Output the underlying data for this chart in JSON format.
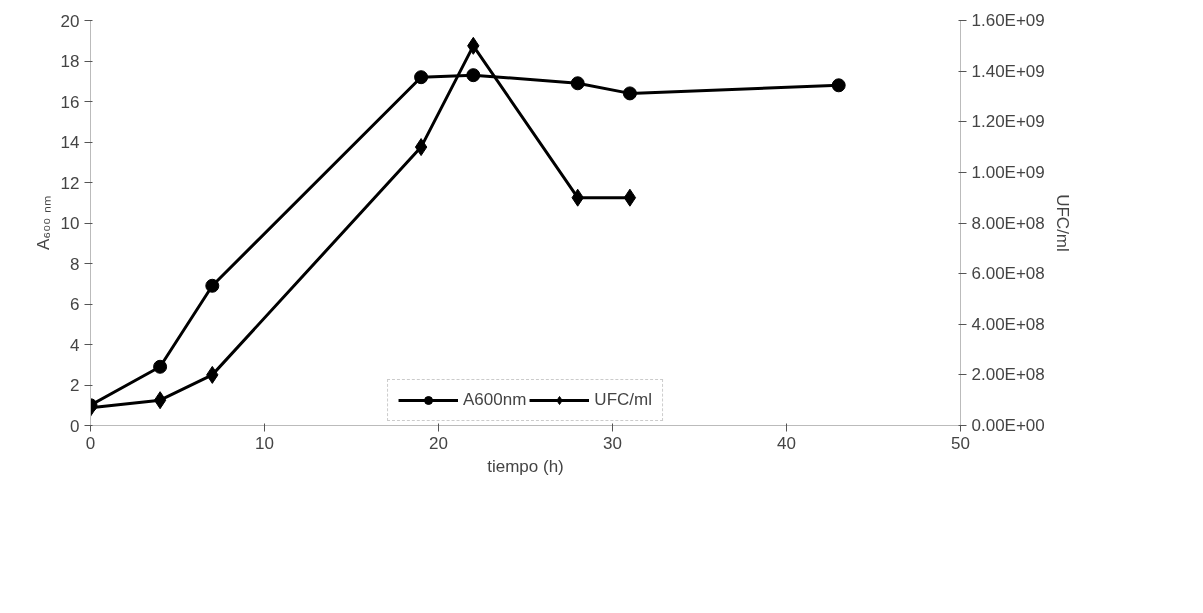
{
  "chart_data": {
    "type": "line",
    "xlabel": "tiempo (h)",
    "ylabel": "A₆₀₀ ₙₘ",
    "y2label": "UFC/ml",
    "xlim": [
      0,
      50
    ],
    "xticks": [
      0,
      10,
      20,
      30,
      40,
      50
    ],
    "ylim": [
      0,
      20
    ],
    "yticks": [
      0,
      2,
      4,
      6,
      8,
      10,
      12,
      14,
      16,
      18,
      20
    ],
    "y2lim": [
      0,
      1600000000
    ],
    "y2ticks": [
      {
        "value": 0,
        "label": "0.00E+00"
      },
      {
        "value": 200000000,
        "label": "2.00E+08"
      },
      {
        "value": 400000000,
        "label": "4.00E+08"
      },
      {
        "value": 600000000,
        "label": "6.00E+08"
      },
      {
        "value": 800000000,
        "label": "8.00E+08"
      },
      {
        "value": 1000000000,
        "label": "1.00E+09"
      },
      {
        "value": 1200000000,
        "label": "1.20E+09"
      },
      {
        "value": 1400000000,
        "label": "1.40E+09"
      },
      {
        "value": 1600000000,
        "label": "1.60E+09"
      }
    ],
    "grid": false,
    "legend": "bottom",
    "line_style": "solid",
    "series": [
      {
        "name": "A600nm",
        "color": "#000000",
        "marker": "circle",
        "x": [
          0,
          4,
          7,
          19,
          22,
          28,
          31,
          43
        ],
        "values": [
          1.0,
          2.9,
          6.9,
          17.2,
          17.3,
          16.9,
          16.4,
          16.8
        ]
      },
      {
        "name": "UFC/ml",
        "color": "#000000",
        "marker": "diamond",
        "axis": "y2",
        "x": [
          0,
          4,
          7,
          19,
          22,
          28,
          31
        ],
        "values": [
          70000000,
          100000000,
          200000000,
          1100000000,
          1500000000,
          900000000,
          900000000
        ]
      }
    ]
  }
}
